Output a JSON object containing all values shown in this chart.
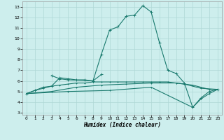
{
  "xlabel": "Humidex (Indice chaleur)",
  "background_color": "#cdeeed",
  "grid_color": "#aed8d6",
  "line_color": "#1a7a6e",
  "xlim": [
    -0.5,
    23.5
  ],
  "ylim": [
    2.8,
    13.5
  ],
  "yticks": [
    3,
    4,
    5,
    6,
    7,
    8,
    9,
    10,
    11,
    12,
    13
  ],
  "xticks": [
    0,
    1,
    2,
    3,
    4,
    5,
    6,
    7,
    8,
    9,
    10,
    11,
    12,
    13,
    14,
    15,
    16,
    17,
    18,
    19,
    20,
    21,
    22,
    23
  ],
  "series1": {
    "points": [
      [
        0,
        4.8
      ],
      [
        1,
        5.1
      ],
      [
        2,
        5.4
      ],
      [
        3,
        5.5
      ],
      [
        4,
        6.3
      ],
      [
        5,
        6.2
      ],
      [
        6,
        6.1
      ],
      [
        7,
        6.1
      ],
      [
        8,
        6.0
      ],
      [
        9,
        8.5
      ],
      [
        10,
        10.8
      ],
      [
        11,
        11.1
      ],
      [
        12,
        12.1
      ],
      [
        13,
        12.2
      ],
      [
        14,
        13.1
      ],
      [
        15,
        12.5
      ],
      [
        16,
        9.6
      ],
      [
        17,
        7.0
      ],
      [
        18,
        6.7
      ],
      [
        19,
        5.8
      ],
      [
        20,
        3.5
      ],
      [
        21,
        4.4
      ],
      [
        22,
        5.0
      ],
      [
        23,
        5.2
      ]
    ]
  },
  "series2": {
    "points": [
      [
        0,
        4.8
      ],
      [
        1,
        5.1
      ],
      [
        2,
        5.3
      ],
      [
        3,
        5.5
      ],
      [
        4,
        5.6
      ],
      [
        5,
        5.7
      ],
      [
        6,
        5.8
      ],
      [
        7,
        5.8
      ],
      [
        8,
        5.9
      ],
      [
        9,
        5.9
      ],
      [
        10,
        5.9
      ],
      [
        11,
        5.9
      ],
      [
        12,
        5.9
      ],
      [
        13,
        5.9
      ],
      [
        14,
        5.9
      ],
      [
        15,
        5.9
      ],
      [
        16,
        5.9
      ],
      [
        17,
        5.9
      ],
      [
        18,
        5.8
      ],
      [
        19,
        5.7
      ],
      [
        20,
        5.6
      ],
      [
        21,
        5.4
      ],
      [
        22,
        5.2
      ],
      [
        23,
        5.2
      ]
    ]
  },
  "series3": {
    "points": [
      [
        0,
        4.8
      ],
      [
        3,
        5.0
      ],
      [
        6,
        5.4
      ],
      [
        9,
        5.6
      ],
      [
        12,
        5.7
      ],
      [
        15,
        5.8
      ],
      [
        18,
        5.8
      ],
      [
        19,
        5.7
      ],
      [
        21,
        5.3
      ],
      [
        23,
        5.2
      ]
    ]
  },
  "series4": {
    "points": [
      [
        0,
        4.8
      ],
      [
        5,
        5.0
      ],
      [
        10,
        5.1
      ],
      [
        15,
        5.4
      ],
      [
        20,
        3.5
      ],
      [
        21,
        4.3
      ],
      [
        22,
        4.8
      ],
      [
        23,
        5.2
      ]
    ]
  },
  "series5": {
    "points": [
      [
        3,
        6.5
      ],
      [
        4,
        6.2
      ],
      [
        5,
        6.1
      ],
      [
        8,
        6.0
      ],
      [
        9,
        6.6
      ]
    ]
  }
}
